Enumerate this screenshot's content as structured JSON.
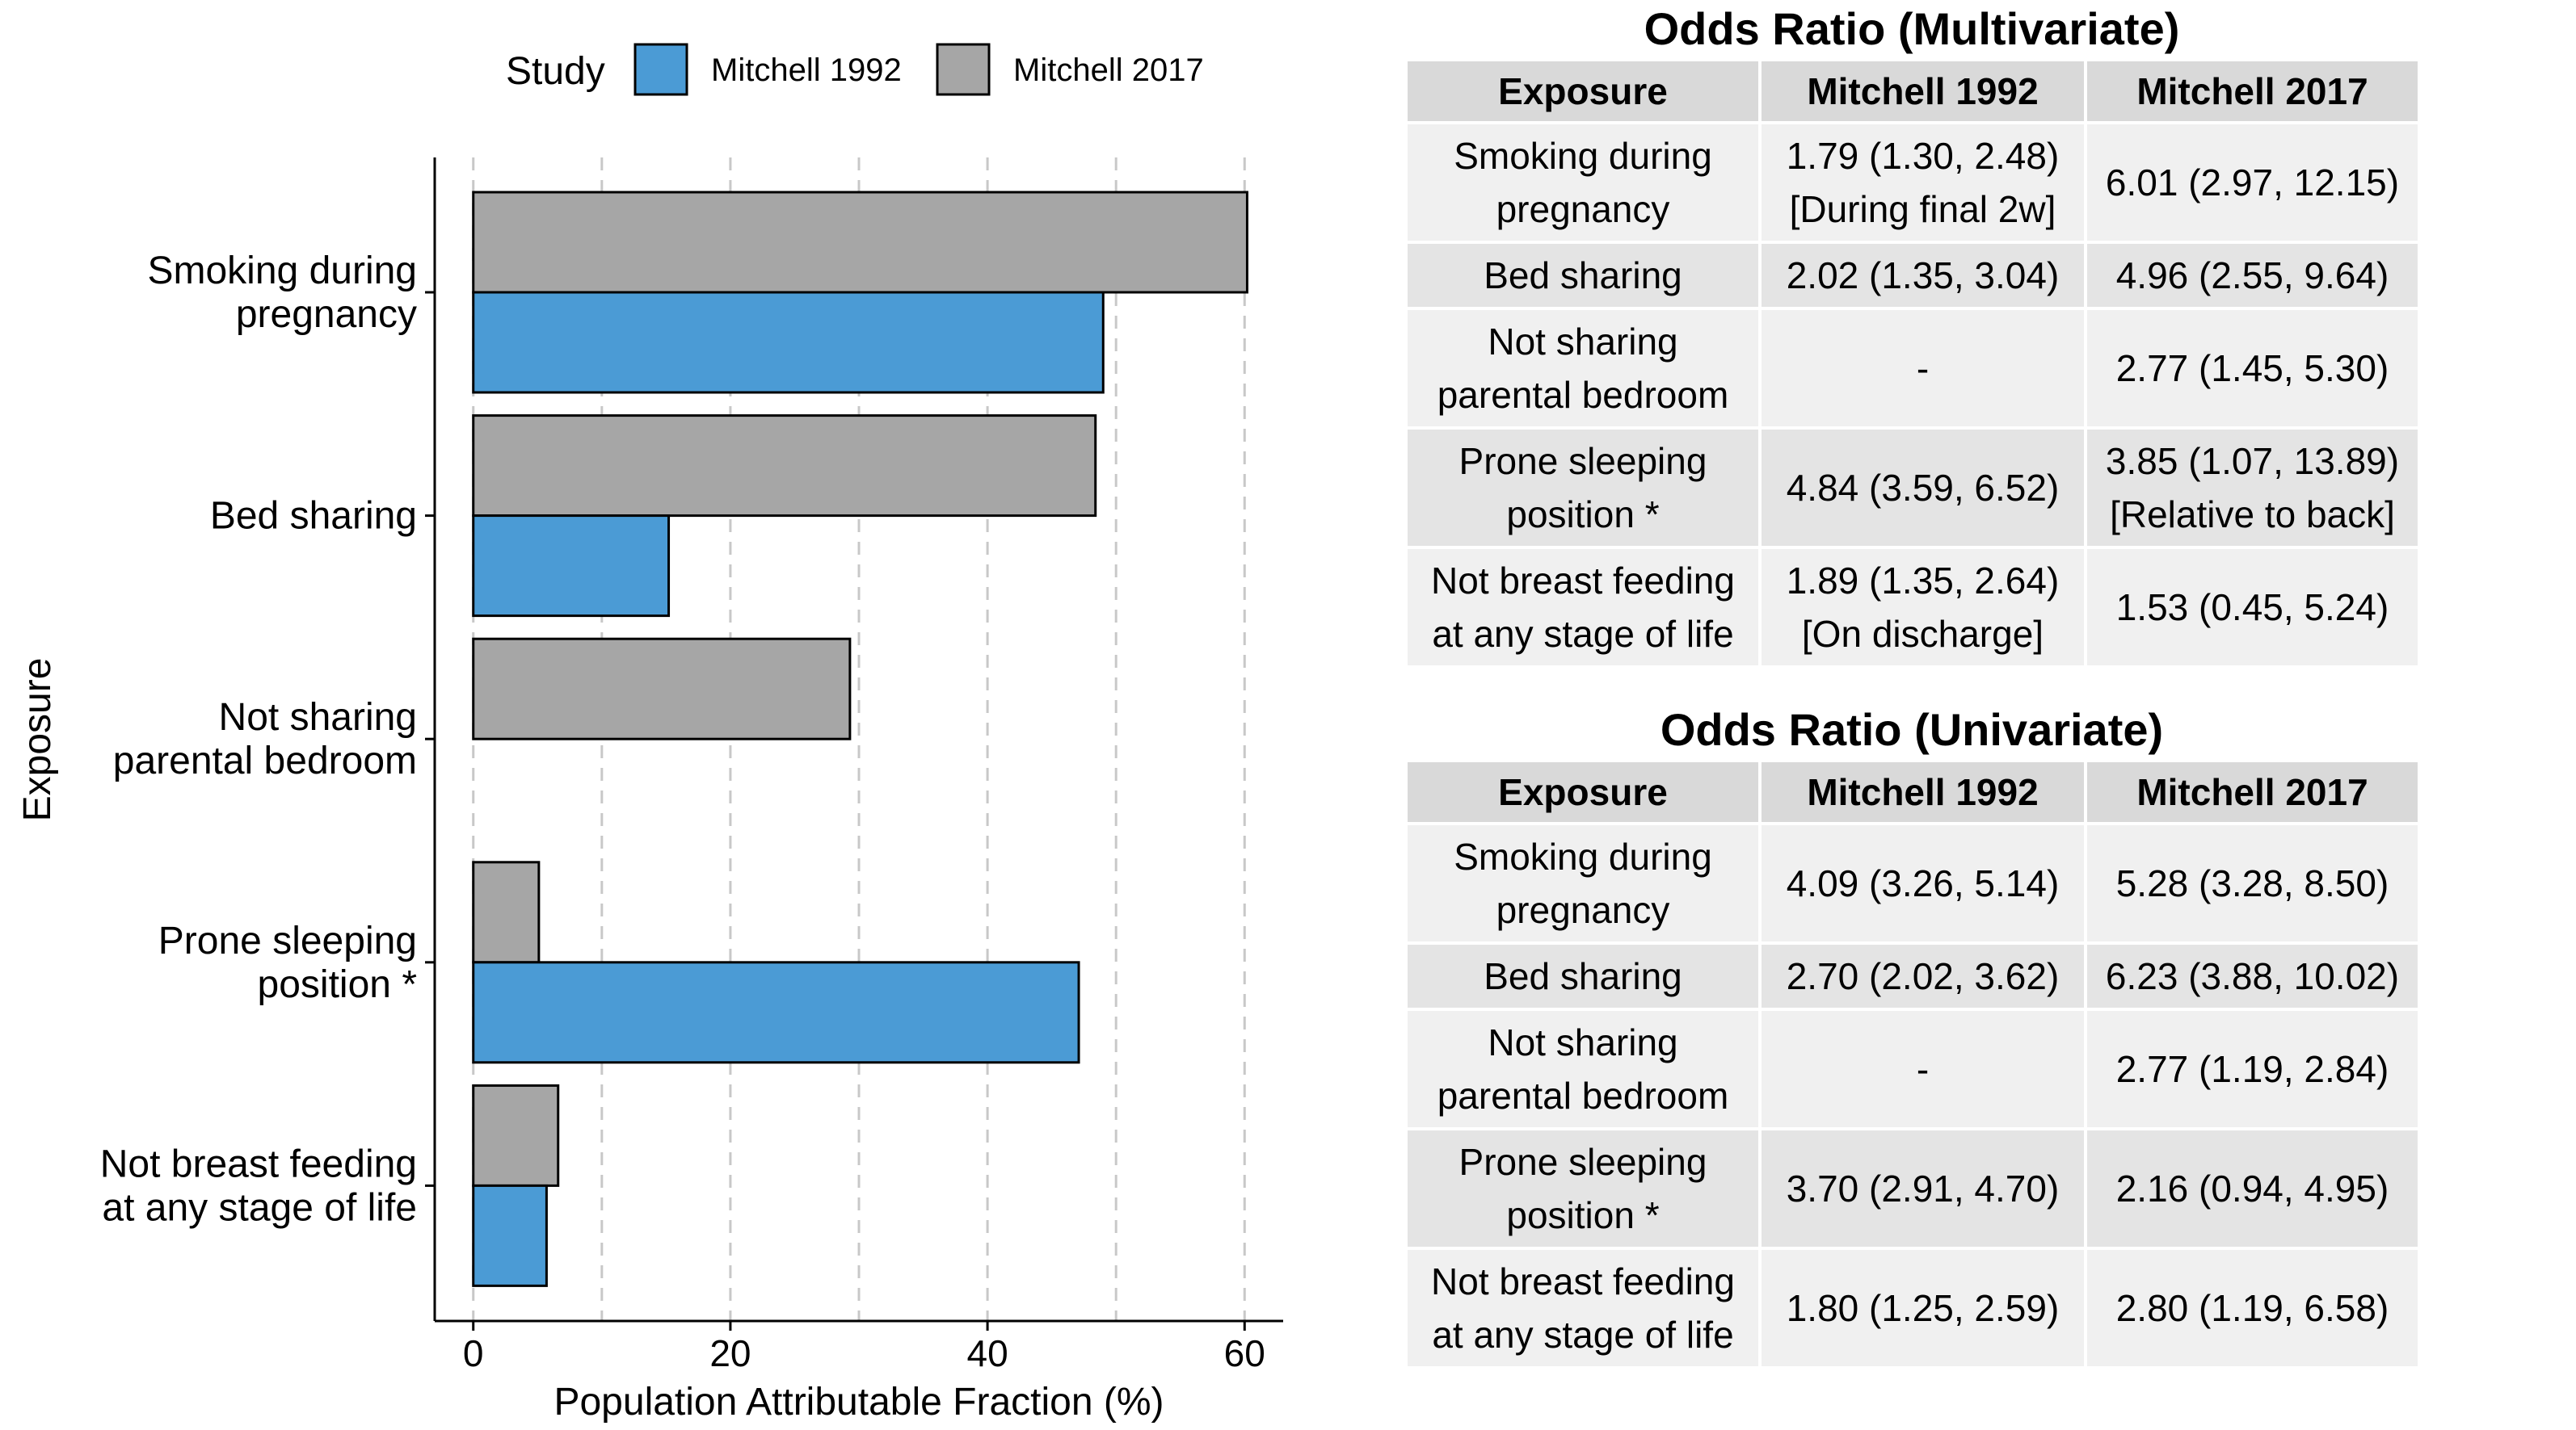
{
  "chart_data": {
    "type": "bar",
    "orientation": "horizontal",
    "categories": [
      "Smoking during\npregnancy",
      "Bed sharing",
      "Not sharing\nparental bedroom",
      "Prone sleeping\nposition *",
      "Not breast feeding\nat any stage of life"
    ],
    "series": [
      {
        "name": "Mitchell 1992",
        "color": "#4b9bd5",
        "values": [
          49,
          15.2,
          null,
          47.1,
          5.7
        ]
      },
      {
        "name": "Mitchell 2017",
        "color": "#a6a6a6",
        "values": [
          60.2,
          48.4,
          29.3,
          5.1,
          6.6
        ]
      }
    ],
    "xlabel": "Population Attributable Fraction (%)",
    "ylabel": "Exposure",
    "xlim": [
      -3,
      63
    ],
    "xticks": [
      "0",
      "20",
      "40",
      "60"
    ],
    "xtick_values": [
      0,
      20,
      40,
      60
    ],
    "gridlines": [
      0,
      10,
      20,
      30,
      40,
      50,
      60
    ],
    "grid": "vertical dashed",
    "legend": {
      "title": "Study",
      "position": "top"
    }
  },
  "tables": [
    {
      "title": "Odds Ratio (Multivariate)",
      "headers": [
        "Exposure",
        "Mitchell 1992",
        "Mitchell 2017"
      ],
      "rows": [
        [
          "Smoking during\npregnancy",
          "1.79 (1.30, 2.48)\n[During final 2w]",
          "6.01 (2.97, 12.15)"
        ],
        [
          "Bed sharing",
          "2.02 (1.35, 3.04)",
          "4.96 (2.55, 9.64)"
        ],
        [
          "Not sharing\nparental bedroom",
          "-",
          "2.77 (1.45, 5.30)"
        ],
        [
          "Prone sleeping\nposition *",
          "4.84 (3.59, 6.52)",
          "3.85 (1.07, 13.89)\n[Relative to back]"
        ],
        [
          "Not breast feeding\nat any stage of life",
          "1.89 (1.35, 2.64)\n[On discharge]",
          "1.53 (0.45, 5.24)"
        ]
      ]
    },
    {
      "title": "Odds Ratio (Univariate)",
      "headers": [
        "Exposure",
        "Mitchell 1992",
        "Mitchell 2017"
      ],
      "rows": [
        [
          "Smoking during\npregnancy",
          "4.09 (3.26, 5.14)",
          "5.28 (3.28, 8.50)"
        ],
        [
          "Bed sharing",
          "2.70 (2.02, 3.62)",
          "6.23 (3.88, 10.02)"
        ],
        [
          "Not sharing\nparental bedroom",
          "-",
          "2.77 (1.19, 2.84)"
        ],
        [
          "Prone sleeping\nposition *",
          "3.70 (2.91, 4.70)",
          "2.16 (0.94, 4.95)"
        ],
        [
          "Not breast feeding\nat any stage of life",
          "1.80 (1.25, 2.59)",
          "2.80 (1.19, 6.58)"
        ]
      ]
    }
  ]
}
